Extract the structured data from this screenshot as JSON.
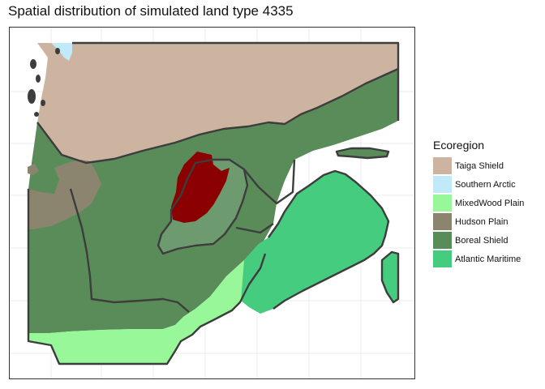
{
  "title": "Spatial distribution of simulated land type 4335",
  "legend": {
    "title": "Ecoregion",
    "items": [
      {
        "label": "Taiga Shield",
        "color": "#cdb4a0"
      },
      {
        "label": "Southern Arctic",
        "color": "#c0eaf7"
      },
      {
        "label": "MixedWood Plain",
        "color": "#98f798"
      },
      {
        "label": "Hudson Plain",
        "color": "#8b8570"
      },
      {
        "label": "Boreal Shield",
        "color": "#5a8c5a"
      },
      {
        "label": "Atlantic Maritime",
        "color": "#45cc7f"
      }
    ]
  },
  "colors": {
    "simulated_land_type": "#8b0000",
    "highlight_zone": "#6e9a70",
    "outline": "#3d3d3d",
    "grid": "#ebebeb"
  }
}
